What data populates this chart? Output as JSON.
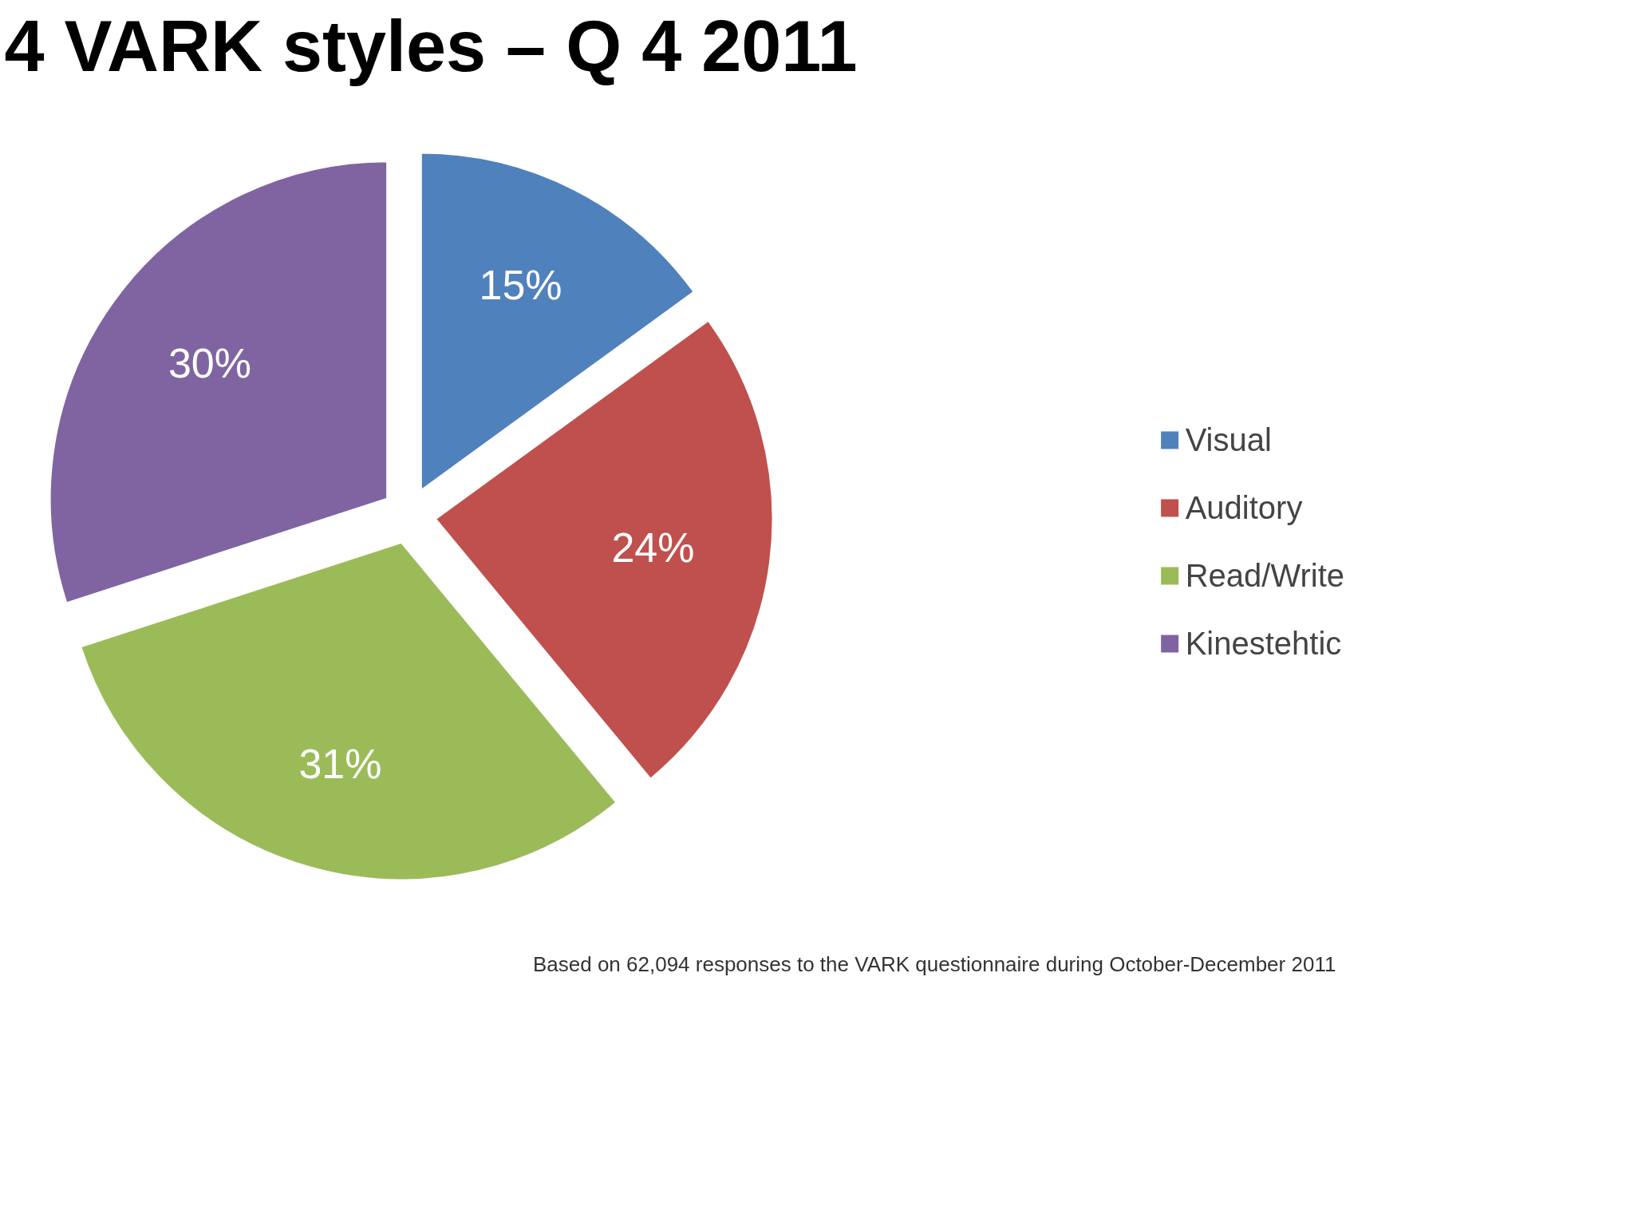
{
  "chart_data": {
    "type": "pie",
    "title": "4 VARK styles – Q 4 2011",
    "categories": [
      "Visual",
      "Auditory",
      "Read/Write",
      "Kinestehtic"
    ],
    "values": [
      15,
      24,
      31,
      30
    ],
    "colors": [
      "#4f81bd",
      "#c0504d",
      "#9bbb59",
      "#8064a2"
    ],
    "value_labels": [
      "15%",
      "24%",
      "31%",
      "30%"
    ],
    "legend": "right",
    "annotations": [
      "Based on 62,094 responses to the VARK questionnaire during October-December 2011"
    ]
  }
}
